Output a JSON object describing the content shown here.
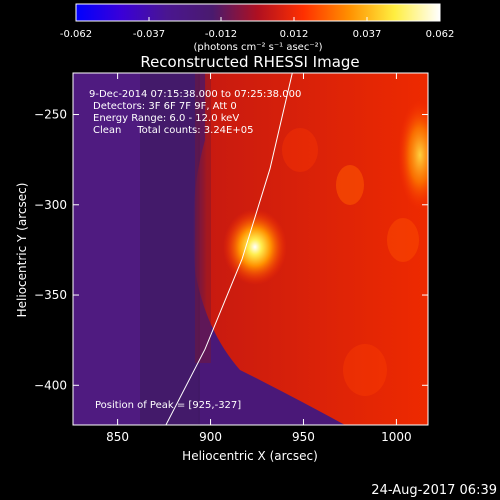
{
  "chart_data": {
    "type": "heatmap",
    "title": "Reconstructed RHESSI Image",
    "xlabel": "Heliocentric X (arcsec)",
    "ylabel": "Heliocentric Y (arcsec)",
    "xlim": [
      826,
      1017
    ],
    "ylim": [
      -422,
      -227
    ],
    "x_ticks": [
      850,
      900,
      950,
      1000
    ],
    "y_ticks": [
      -250,
      -300,
      -350,
      -400
    ],
    "colorbar": {
      "unit_label": "(photons cm⁻² s⁻¹ asec⁻²)",
      "range": [
        -0.062,
        0.062
      ],
      "ticks": [
        "-0.062",
        "-0.037",
        "-0.012",
        "0.012",
        "0.037",
        "0.062"
      ],
      "gradient": [
        "#0000ff",
        "#3a00d8",
        "#4a1690",
        "#4a1a6e",
        "#b01020",
        "#ff3000",
        "#ff9000",
        "#ffee40",
        "#ffffff"
      ]
    },
    "annotations": [
      "9-Dec-2014 07:15:38.000 to 07:25:38.000",
      "Detectors: 3F 6F 7F 9F, Att 0",
      "Energy Range: 6.0 - 12.0 keV",
      "Clean     Total counts: 3.24E+05"
    ],
    "peak_label": "Position of Peak = [925,-327]",
    "peak": [
      925,
      -327
    ],
    "limb_arc": [
      [
        944,
        -227
      ],
      [
        932,
        -280
      ],
      [
        917,
        -330
      ],
      [
        897,
        -380
      ],
      [
        876,
        -422
      ]
    ],
    "timestamp": "24-Aug-2017 06:39"
  }
}
